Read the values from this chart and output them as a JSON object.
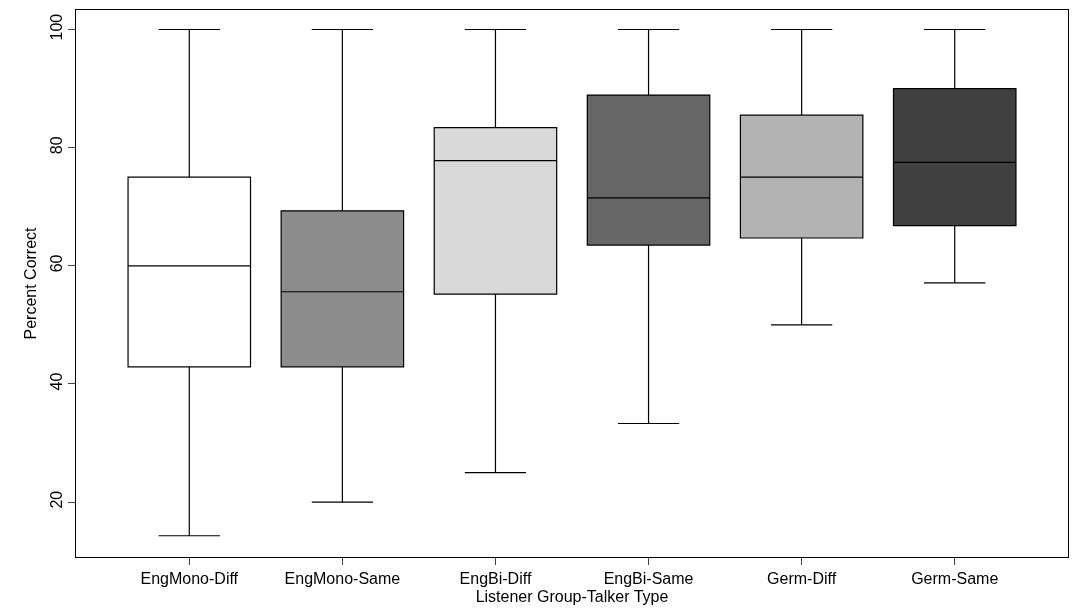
{
  "chart_data": {
    "type": "box",
    "xlabel": "Listener Group-Talker Type",
    "ylabel": "Percent Correct",
    "categories": [
      "EngMono-Diff",
      "EngMono-Same",
      "EngBi-Diff",
      "EngBi-Same",
      "Germ-Diff",
      "Germ-Same"
    ],
    "colors": [
      "#ffffff",
      "#8c8c8c",
      "#d9d9d9",
      "#666666",
      "#b3b3b3",
      "#404040"
    ],
    "boxes": [
      {
        "low": 14.3,
        "q1": 42.9,
        "median": 60,
        "q3": 75,
        "high": 100
      },
      {
        "low": 20,
        "q1": 42.9,
        "median": 55.6,
        "q3": 69.3,
        "high": 100
      },
      {
        "low": 25,
        "q1": 55.2,
        "median": 77.8,
        "q3": 83.4,
        "high": 100
      },
      {
        "low": 33.3,
        "q1": 63.5,
        "median": 71.5,
        "q3": 88.9,
        "high": 100
      },
      {
        "low": 50,
        "q1": 64.7,
        "median": 75,
        "q3": 85.5,
        "high": 100
      },
      {
        "low": 57.1,
        "q1": 66.8,
        "median": 77.5,
        "q3": 90,
        "high": 100
      }
    ],
    "ylim": [
      10.7,
      103.3
    ],
    "yticks": [
      20,
      40,
      60,
      80,
      100
    ]
  }
}
